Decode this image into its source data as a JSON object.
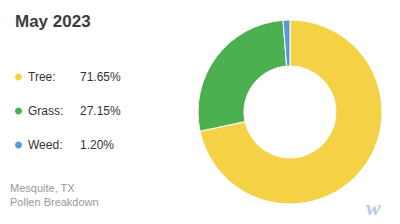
{
  "chart_data": {
    "type": "pie",
    "title": "May 2023",
    "subtitle": [
      "Mesquite, TX",
      "Pollen Breakdown"
    ],
    "annotation": "w",
    "categories": [
      "Tree:",
      "Grass:",
      "Weed:"
    ],
    "values": [
      71.65,
      27.15,
      1.2
    ],
    "value_labels": [
      "71.65%",
      "27.15%",
      "1.20%"
    ],
    "colors": [
      "#F5D145",
      "#4CAF50",
      "#5B9BD5"
    ],
    "legend": "left"
  }
}
